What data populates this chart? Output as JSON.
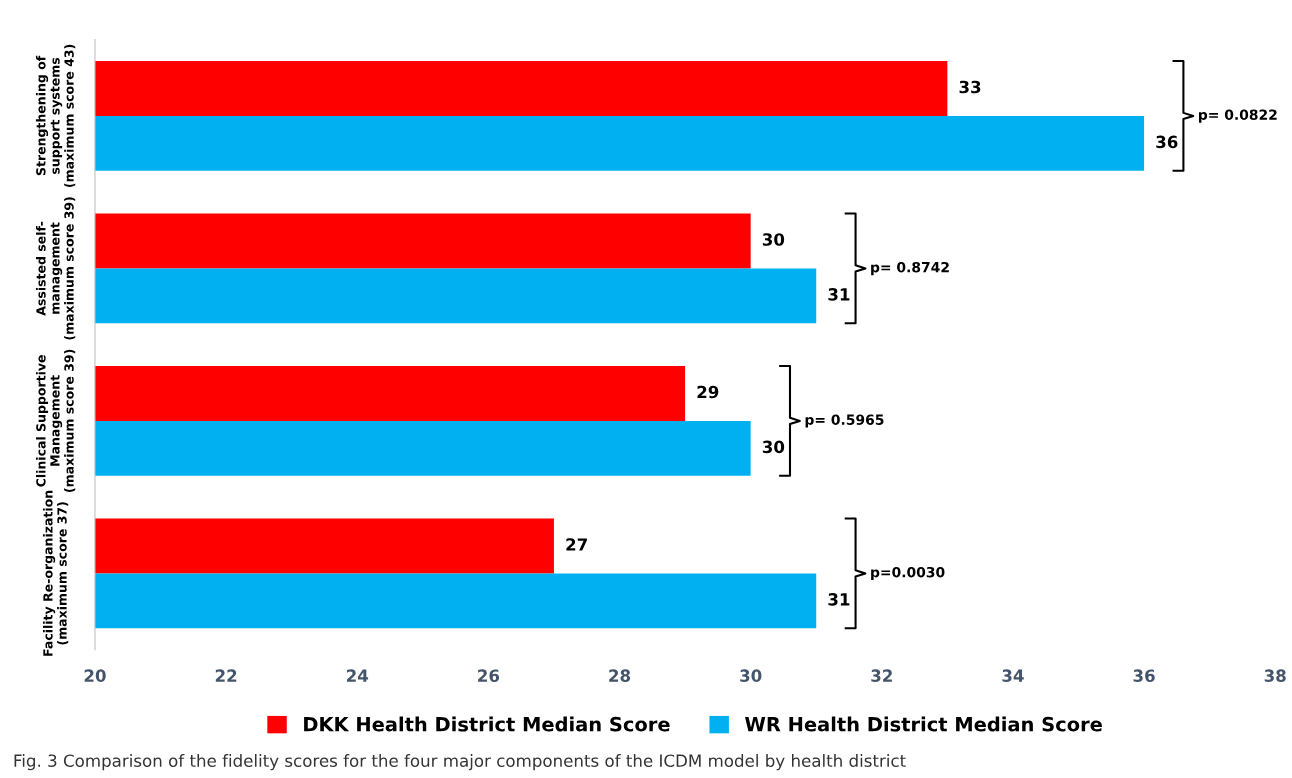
{
  "chart_data": {
    "type": "bar",
    "orientation": "horizontal",
    "categories": [
      "Strengthening of\nsupport systems\n(maximum score 43)",
      "Assisted self-\nmanagement\n(maximum score 39)",
      "Clinical Supportive\nManagement\n(maximum score 39)",
      "Facility Re-organization\n(maximum score 37)"
    ],
    "series": [
      {
        "name": "DKK Health District Median Score",
        "color": "#ff0000",
        "values": [
          33,
          30,
          29,
          27
        ]
      },
      {
        "name": "WR Health District Median Score",
        "color": "#00b0f0",
        "values": [
          36,
          31,
          30,
          31
        ]
      }
    ],
    "xlim": [
      20,
      38
    ],
    "xticks": [
      20,
      22,
      24,
      26,
      28,
      30,
      32,
      34,
      36,
      38
    ],
    "data_labels": true,
    "grid": false,
    "legend": "bottom",
    "annotations": [
      "p= 0.0822",
      "p= 0.8742",
      "p= 0.5965",
      "p=0.0030",
      "Fig. 3 Comparison of the fidelity scores for the four major components of the ICDM model by health district"
    ]
  }
}
